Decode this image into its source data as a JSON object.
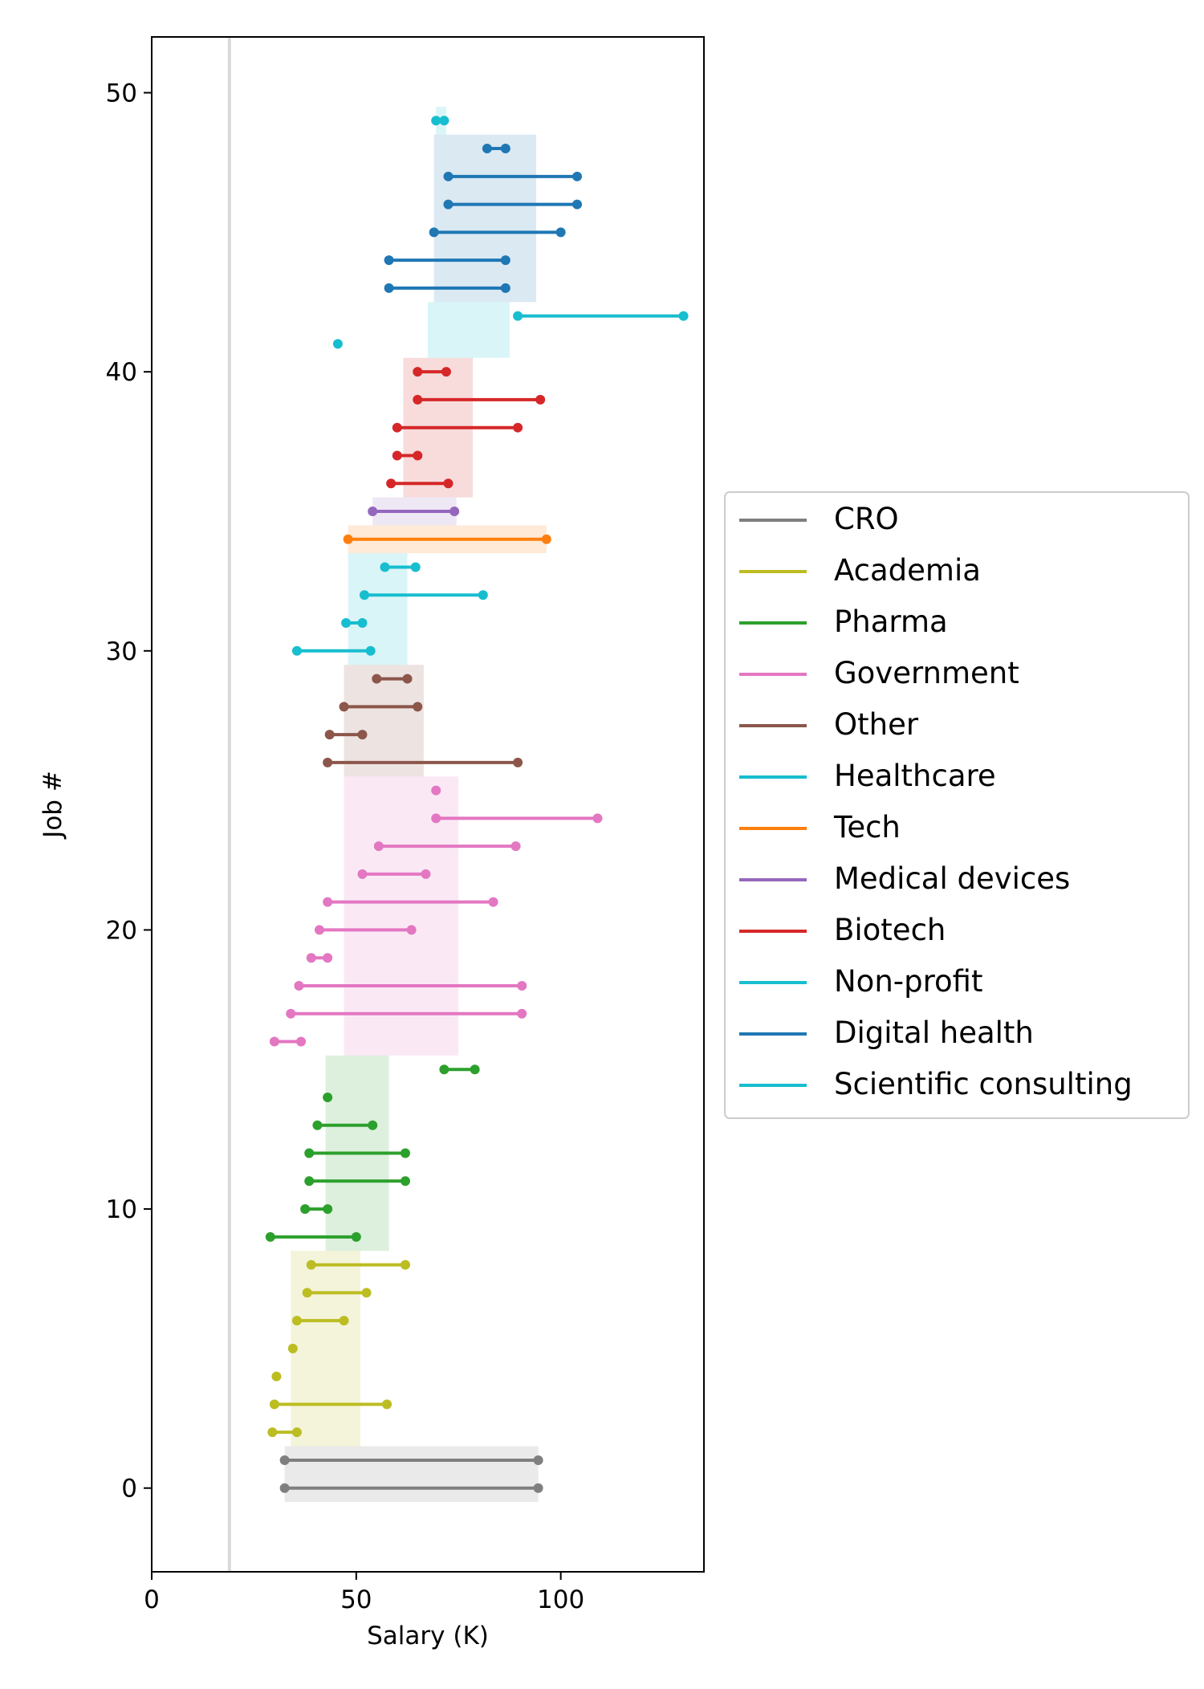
{
  "chart_data": {
    "type": "line",
    "xlabel": "Salary (K)",
    "ylabel": "Job #",
    "xlim": [
      0,
      135
    ],
    "ylim": [
      -3,
      52
    ],
    "x_ticks": [
      0,
      50,
      100
    ],
    "y_ticks": [
      0,
      10,
      20,
      30,
      40,
      50
    ],
    "grid": false,
    "legend_position": "right",
    "reference_line": {
      "x": 19,
      "color": "#d9d9d9"
    },
    "series": [
      {
        "name": "CRO",
        "color": "#7f7f7f",
        "band": {
          "x": [
            32.5,
            94.5
          ],
          "y": [
            -0.5,
            1.5
          ]
        },
        "jobs": [
          {
            "y": 0,
            "x": [
              32.5,
              94.5
            ]
          },
          {
            "y": 1,
            "x": [
              32.5,
              94.5
            ]
          }
        ]
      },
      {
        "name": "Academia",
        "color": "#bcbd22",
        "band": {
          "x": [
            34,
            51
          ],
          "y": [
            1.5,
            8.5
          ]
        },
        "jobs": [
          {
            "y": 2,
            "x": [
              29.5,
              35.5
            ]
          },
          {
            "y": 3,
            "x": [
              30,
              57.5
            ]
          },
          {
            "y": 4,
            "x": [
              30.5
            ]
          },
          {
            "y": 5,
            "x": [
              34.5
            ]
          },
          {
            "y": 6,
            "x": [
              35.5,
              47
            ]
          },
          {
            "y": 7,
            "x": [
              38,
              52.5
            ]
          },
          {
            "y": 8,
            "x": [
              39,
              62
            ]
          }
        ]
      },
      {
        "name": "Pharma",
        "color": "#2ca02c",
        "band": {
          "x": [
            42.5,
            58
          ],
          "y": [
            8.5,
            15.5
          ]
        },
        "jobs": [
          {
            "y": 9,
            "x": [
              29,
              50
            ]
          },
          {
            "y": 10,
            "x": [
              37.5,
              43
            ]
          },
          {
            "y": 11,
            "x": [
              38.5,
              62
            ]
          },
          {
            "y": 12,
            "x": [
              38.5,
              62
            ]
          },
          {
            "y": 13,
            "x": [
              40.5,
              54
            ]
          },
          {
            "y": 14,
            "x": [
              43
            ]
          },
          {
            "y": 15,
            "x": [
              71.5,
              79
            ]
          }
        ]
      },
      {
        "name": "Government",
        "color": "#e377c2",
        "band": {
          "x": [
            47,
            75
          ],
          "y": [
            15.5,
            25.5
          ]
        },
        "jobs": [
          {
            "y": 16,
            "x": [
              30,
              36.5
            ]
          },
          {
            "y": 17,
            "x": [
              34,
              90.5
            ]
          },
          {
            "y": 18,
            "x": [
              36,
              90.5
            ]
          },
          {
            "y": 19,
            "x": [
              39,
              43
            ]
          },
          {
            "y": 20,
            "x": [
              41,
              63.5
            ]
          },
          {
            "y": 21,
            "x": [
              43,
              83.5
            ]
          },
          {
            "y": 22,
            "x": [
              51.5,
              67
            ]
          },
          {
            "y": 23,
            "x": [
              55.5,
              89
            ]
          },
          {
            "y": 24,
            "x": [
              69.5,
              109
            ]
          },
          {
            "y": 25,
            "x": [
              69.5
            ]
          }
        ]
      },
      {
        "name": "Other",
        "color": "#8c564b",
        "band": {
          "x": [
            47,
            66.5
          ],
          "y": [
            25.5,
            29.5
          ]
        },
        "jobs": [
          {
            "y": 26,
            "x": [
              43,
              89.5
            ]
          },
          {
            "y": 27,
            "x": [
              43.5,
              51.5
            ]
          },
          {
            "y": 28,
            "x": [
              47,
              65
            ]
          },
          {
            "y": 29,
            "x": [
              55,
              62.5
            ]
          }
        ]
      },
      {
        "name": "Healthcare",
        "color": "#17becf",
        "band": {
          "x": [
            48,
            62.5
          ],
          "y": [
            29.5,
            33.5
          ]
        },
        "jobs": [
          {
            "y": 30,
            "x": [
              35.5,
              53.5
            ]
          },
          {
            "y": 31,
            "x": [
              47.5,
              51.5
            ]
          },
          {
            "y": 32,
            "x": [
              52,
              81
            ]
          },
          {
            "y": 33,
            "x": [
              57,
              64.5
            ]
          }
        ]
      },
      {
        "name": "Tech",
        "color": "#ff7f0e",
        "band": {
          "x": [
            48,
            96.5
          ],
          "y": [
            33.5,
            34.5
          ]
        },
        "jobs": [
          {
            "y": 34,
            "x": [
              48,
              96.5
            ]
          }
        ]
      },
      {
        "name": "Medical devices",
        "color": "#9467bd",
        "band": {
          "x": [
            54,
            74.5
          ],
          "y": [
            34.5,
            35.5
          ]
        },
        "jobs": [
          {
            "y": 35,
            "x": [
              54,
              74
            ]
          }
        ]
      },
      {
        "name": "Biotech",
        "color": "#d62728",
        "band": {
          "x": [
            61.5,
            78.5
          ],
          "y": [
            35.5,
            40.5
          ]
        },
        "jobs": [
          {
            "y": 36,
            "x": [
              58.5,
              72.5
            ]
          },
          {
            "y": 37,
            "x": [
              60,
              65
            ]
          },
          {
            "y": 38,
            "x": [
              60,
              89.5
            ]
          },
          {
            "y": 39,
            "x": [
              65,
              95
            ]
          },
          {
            "y": 40,
            "x": [
              65,
              72
            ]
          }
        ]
      },
      {
        "name": "Non-profit",
        "color": "#17becf",
        "band": {
          "x": [
            67.5,
            87.5
          ],
          "y": [
            40.5,
            42.5
          ]
        },
        "jobs": [
          {
            "y": 41,
            "x": [
              45.5
            ]
          },
          {
            "y": 42,
            "x": [
              89.5,
              130
            ]
          }
        ]
      },
      {
        "name": "Digital health",
        "color": "#1f77b4",
        "band": {
          "x": [
            69,
            94
          ],
          "y": [
            42.5,
            48.5
          ]
        },
        "jobs": [
          {
            "y": 43,
            "x": [
              58,
              86.5
            ]
          },
          {
            "y": 44,
            "x": [
              58,
              86.5
            ]
          },
          {
            "y": 45,
            "x": [
              69,
              100
            ]
          },
          {
            "y": 46,
            "x": [
              72.5,
              104
            ]
          },
          {
            "y": 47,
            "x": [
              72.5,
              104
            ]
          },
          {
            "y": 48,
            "x": [
              82,
              86.5
            ]
          }
        ]
      },
      {
        "name": "Scientific consulting",
        "color": "#17becf",
        "band": {
          "x": [
            69.5,
            72
          ],
          "y": [
            48.5,
            49.5
          ]
        },
        "jobs": [
          {
            "y": 49,
            "x": [
              69.5,
              71.5
            ]
          }
        ]
      }
    ]
  }
}
